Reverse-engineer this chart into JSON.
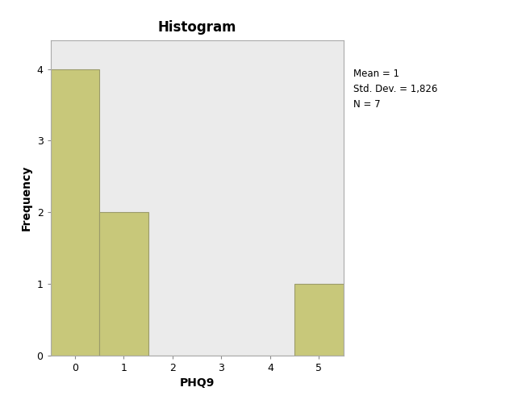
{
  "title": "Histogram",
  "xlabel": "PHQ9",
  "ylabel": "Frequency",
  "bar_centers": [
    0,
    1,
    2,
    3,
    4,
    5
  ],
  "bar_heights": [
    4,
    2,
    0,
    0,
    0,
    1
  ],
  "bar_width": 1.0,
  "bar_color": "#C8C87A",
  "bar_edgecolor": "#9B9B6A",
  "xlim": [
    -0.5,
    5.5
  ],
  "ylim": [
    0,
    4.4
  ],
  "yticks": [
    0,
    1,
    2,
    3,
    4
  ],
  "xticks": [
    0,
    1,
    2,
    3,
    4,
    5
  ],
  "plot_bg_color": "#EBEBEB",
  "fig_bg_color": "#FFFFFF",
  "annotation_text": "Mean = 1\nStd. Dev. = 1,826\nN = 7",
  "annotation_fontsize": 8.5,
  "title_fontsize": 12,
  "axis_label_fontsize": 10,
  "tick_fontsize": 9
}
